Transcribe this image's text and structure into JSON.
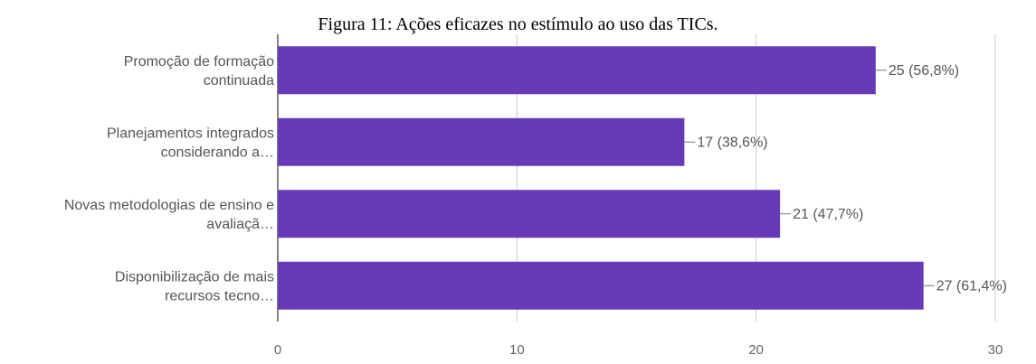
{
  "figure": {
    "caption": "Figura 11: Ações eficazes no estímulo ao uso das TICs."
  },
  "chart_data": {
    "type": "bar",
    "orientation": "horizontal",
    "categories": [
      [
        "Promoção de formação",
        "continuada"
      ],
      [
        "Planejamentos integrados",
        "considerando a…"
      ],
      [
        "Novas metodologias de ensino e",
        "avaliaçã…"
      ],
      [
        "Disponibilização de mais",
        "recursos tecno…"
      ]
    ],
    "values": [
      25,
      17,
      21,
      27
    ],
    "data_labels": [
      "25 (56,8%)",
      "17 (38,6%)",
      "21 (47,7%)",
      "27 (61,4%)"
    ],
    "xlim": [
      0,
      30
    ],
    "x_ticks": [
      0,
      10,
      20,
      30
    ],
    "grid": true,
    "bar_color": "#673ab7"
  }
}
